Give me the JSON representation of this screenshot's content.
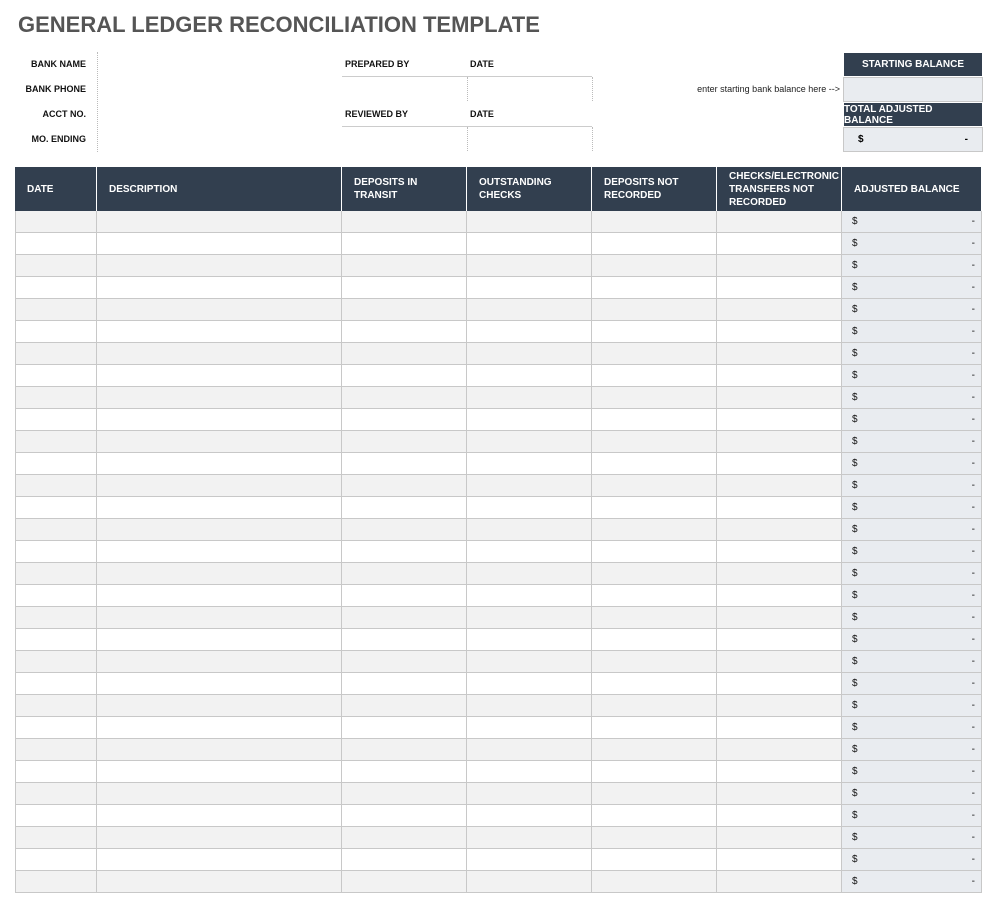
{
  "header": {
    "title": "GENERAL LEDGER RECONCILIATION TEMPLATE"
  },
  "info": {
    "fields": [
      "BANK NAME",
      "BANK PHONE",
      "ACCT NO.",
      "MO. ENDING"
    ],
    "prepared_by": "PREPARED BY",
    "prepared_date": "DATE",
    "reviewed_by": "REVIEWED BY",
    "reviewed_date": "DATE"
  },
  "balance": {
    "starting_label": "STARTING BALANCE",
    "hint": "enter starting bank balance here -->",
    "total_label": "TOTAL ADJUSTED BALANCE",
    "total_currency": "$",
    "total_value": "-"
  },
  "table": {
    "columns": [
      "DATE",
      "DESCRIPTION",
      "DEPOSITS IN TRANSIT",
      "OUTSTANDING CHECKS",
      "DEPOSITS NOT RECORDED",
      "CHECKS/ELECTRONIC TRANSFERS NOT RECORDED",
      "ADJUSTED BALANCE"
    ],
    "rows": [
      [
        "$",
        "-"
      ],
      [
        "$",
        "-"
      ],
      [
        "$",
        "-"
      ],
      [
        "$",
        "-"
      ],
      [
        "$",
        "-"
      ],
      [
        "$",
        "-"
      ],
      [
        "$",
        "-"
      ],
      [
        "$",
        "-"
      ],
      [
        "$",
        "-"
      ],
      [
        "$",
        "-"
      ],
      [
        "$",
        "-"
      ],
      [
        "$",
        "-"
      ],
      [
        "$",
        "-"
      ],
      [
        "$",
        "-"
      ],
      [
        "$",
        "-"
      ],
      [
        "$",
        "-"
      ],
      [
        "$",
        "-"
      ],
      [
        "$",
        "-"
      ],
      [
        "$",
        "-"
      ],
      [
        "$",
        "-"
      ],
      [
        "$",
        "-"
      ],
      [
        "$",
        "-"
      ],
      [
        "$",
        "-"
      ],
      [
        "$",
        "-"
      ],
      [
        "$",
        "-"
      ],
      [
        "$",
        "-"
      ],
      [
        "$",
        "-"
      ],
      [
        "$",
        "-"
      ],
      [
        "$",
        "-"
      ],
      [
        "$",
        "-"
      ],
      [
        "$",
        "-"
      ]
    ]
  }
}
